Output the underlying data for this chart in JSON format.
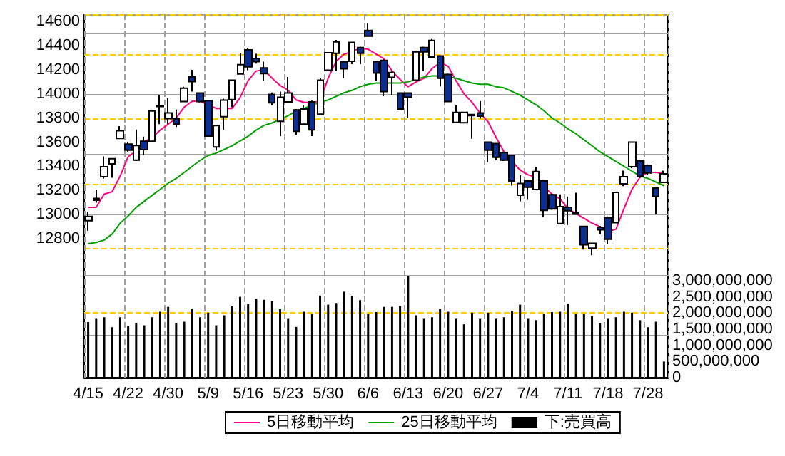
{
  "chart_data": {
    "type": "candlestick",
    "categories": [
      "4/15",
      null,
      null,
      null,
      null,
      "4/22",
      null,
      null,
      null,
      null,
      "4/30",
      null,
      null,
      null,
      null,
      "5/9",
      null,
      null,
      null,
      null,
      "5/16",
      null,
      null,
      null,
      null,
      "5/23",
      null,
      null,
      null,
      null,
      "5/30",
      null,
      null,
      null,
      null,
      "6/6",
      null,
      null,
      null,
      null,
      "6/13",
      null,
      null,
      null,
      null,
      "6/20",
      null,
      null,
      null,
      null,
      "6/27",
      null,
      null,
      null,
      null,
      "7/4",
      null,
      null,
      null,
      null,
      "7/11",
      null,
      null,
      null,
      null,
      "7/18",
      null,
      null,
      null,
      null,
      "7/28",
      null,
      null
    ],
    "ohlc": [
      [
        12950,
        13020,
        12867,
        12985
      ],
      [
        13120,
        13208,
        13099,
        13135
      ],
      [
        13314,
        13483,
        13300,
        13397
      ],
      [
        13420,
        13463,
        13306,
        13463
      ],
      [
        13632,
        13734,
        13628,
        13695
      ],
      [
        13585,
        13600,
        13522,
        13534
      ],
      [
        13451,
        13706,
        13444,
        13573
      ],
      [
        13608,
        13647,
        13491,
        13538
      ],
      [
        13608,
        13867,
        13604,
        13859
      ],
      [
        13895,
        13992,
        13749,
        13900
      ],
      [
        13796,
        13965,
        13749,
        13843
      ],
      [
        13796,
        13871,
        13726,
        13749
      ],
      [
        13937,
        14059,
        13933,
        14047
      ],
      [
        14141,
        14200,
        14020,
        14102
      ],
      [
        14008,
        14012,
        13930,
        13937
      ],
      [
        13945,
        13950,
        13645,
        13651
      ],
      [
        13561,
        13742,
        13530,
        13738
      ],
      [
        13812,
        13961,
        13702,
        13949
      ],
      [
        13953,
        14118,
        13890,
        14114
      ],
      [
        14165,
        14337,
        14160,
        14243
      ],
      [
        14365,
        14380,
        14196,
        14224
      ],
      [
        14294,
        14333,
        14251,
        14267
      ],
      [
        14216,
        14267,
        14110,
        14169
      ],
      [
        13996,
        14012,
        13906,
        13926
      ],
      [
        13773,
        14020,
        13651,
        13973
      ],
      [
        13934,
        14141,
        13930,
        14008
      ],
      [
        13867,
        13875,
        13663,
        13691
      ],
      [
        13749,
        13906,
        13745,
        13875
      ],
      [
        13934,
        13945,
        13651,
        13702
      ],
      [
        13832,
        14130,
        13828,
        14114
      ],
      [
        14196,
        14345,
        14188,
        14341
      ],
      [
        14337,
        14447,
        14188,
        14431
      ],
      [
        14267,
        14275,
        14130,
        14208
      ],
      [
        14271,
        14431,
        14247,
        14427
      ],
      [
        14384,
        14392,
        14247,
        14337
      ],
      [
        14525,
        14588,
        14474,
        14478
      ],
      [
        14267,
        14275,
        14110,
        14173
      ],
      [
        14278,
        14286,
        13981,
        14020
      ],
      [
        14137,
        14188,
        13992,
        14177
      ],
      [
        14008,
        14012,
        13871,
        13875
      ],
      [
        14008,
        14012,
        13804,
        13973
      ],
      [
        14114,
        14357,
        14110,
        14349
      ],
      [
        14384,
        14392,
        14188,
        14349
      ],
      [
        14306,
        14455,
        14302,
        14443
      ],
      [
        14314,
        14318,
        14063,
        14130
      ],
      [
        14161,
        14169,
        13933,
        13937
      ],
      [
        13765,
        13906,
        13761,
        13847
      ],
      [
        13761,
        13851,
        13757,
        13847
      ],
      [
        13830,
        13835,
        13628,
        13820
      ],
      [
        13843,
        13941,
        13796,
        13816
      ],
      [
        13600,
        13604,
        13436,
        13534
      ],
      [
        13589,
        13593,
        13451,
        13475
      ],
      [
        13514,
        13522,
        13444,
        13451
      ],
      [
        13491,
        13498,
        13240,
        13279
      ],
      [
        13161,
        13326,
        13110,
        13259
      ],
      [
        13279,
        13287,
        13122,
        13228
      ],
      [
        13208,
        13397,
        13204,
        13357
      ],
      [
        13279,
        13287,
        12981,
        13036
      ],
      [
        13165,
        13173,
        13040,
        13048
      ],
      [
        12926,
        13169,
        12922,
        13067
      ],
      [
        13060,
        13150,
        12914,
        13032
      ],
      [
        13016,
        13181,
        13004,
        13005
      ],
      [
        12903,
        12907,
        12711,
        12750
      ],
      [
        12722,
        12766,
        12663,
        12762
      ],
      [
        12895,
        12907,
        12836,
        12875
      ],
      [
        12973,
        12985,
        12758,
        12797
      ],
      [
        12934,
        13189,
        12930,
        13185
      ],
      [
        13255,
        13365,
        13236,
        13314
      ],
      [
        13397,
        13604,
        13385,
        13600
      ],
      [
        13444,
        13451,
        13306,
        13318
      ],
      [
        13408,
        13416,
        13326,
        13346
      ],
      [
        13220,
        13224,
        13001,
        13150
      ],
      [
        13267,
        13365,
        13263,
        13338
      ]
    ],
    "colors": [
      "#ffffff",
      "#ffffff",
      "#ffffff",
      "#ffffff",
      "#ffffff",
      "#0c2f8f",
      "#ffffff",
      "#0c2f8f",
      "#ffffff",
      "#ffffff",
      "#ffffff",
      "#0c2f8f",
      "#ffffff",
      "#0c2f8f",
      "#0c2f8f",
      "#0c2f8f",
      "#ffffff",
      "#ffffff",
      "#ffffff",
      "#ffffff",
      "#0c2f8f",
      "#0c2f8f",
      "#0c2f8f",
      "#0c2f8f",
      "#ffffff",
      "#ffffff",
      "#0c2f8f",
      "#ffffff",
      "#0c2f8f",
      "#ffffff",
      "#ffffff",
      "#ffffff",
      "#0c2f8f",
      "#ffffff",
      "#0c2f8f",
      "#0c2f8f",
      "#0c2f8f",
      "#0c2f8f",
      "#ffffff",
      "#0c2f8f",
      "#0c2f8f",
      "#ffffff",
      "#0c2f8f",
      "#ffffff",
      "#0c2f8f",
      "#0c2f8f",
      "#ffffff",
      "#ffffff",
      "#0c2f8f",
      "#0c2f8f",
      "#0c2f8f",
      "#0c2f8f",
      "#0c2f8f",
      "#0c2f8f",
      "#ffffff",
      "#0c2f8f",
      "#ffffff",
      "#0c2f8f",
      "#0c2f8f",
      "#ffffff",
      "#0c2f8f",
      "#0c2f8f",
      "#0c2f8f",
      "#ffffff",
      "#0c2f8f",
      "#0c2f8f",
      "#ffffff",
      "#ffffff",
      "#ffffff",
      "#0c2f8f",
      "#0c2f8f",
      "#0c2f8f",
      "#ffffff"
    ],
    "series": [
      {
        "name": "5日移動平均",
        "type": "line",
        "color": "#ff0080",
        "values": [
          13060,
          13060,
          13170,
          13190,
          13320,
          13480,
          13530,
          13600,
          13640,
          13700,
          13750,
          13800,
          13890,
          13940,
          13940,
          13910,
          13880,
          13880,
          13880,
          13970,
          14110,
          14190,
          14200,
          14130,
          14070,
          14030,
          13950,
          13930,
          13930,
          13940,
          14130,
          14270,
          14330,
          14350,
          14380,
          14370,
          14330,
          14290,
          14190,
          14120,
          14060,
          14100,
          14130,
          14210,
          14260,
          14230,
          14110,
          14000,
          13930,
          13840,
          13770,
          13640,
          13520,
          13440,
          13370,
          13330,
          13310,
          13230,
          13170,
          13130,
          13050,
          13010,
          12970,
          12930,
          12900,
          12860,
          12880,
          13050,
          13210,
          13310,
          13350,
          13350,
          13340
        ]
      },
      {
        "name": "25日移動平均",
        "type": "line",
        "color": "#00a000",
        "values": [
          12760,
          12770,
          12790,
          12840,
          12930,
          12990,
          13060,
          13110,
          13160,
          13210,
          13260,
          13300,
          13350,
          13400,
          13450,
          13490,
          13510,
          13540,
          13570,
          13610,
          13650,
          13700,
          13740,
          13760,
          13790,
          13820,
          13860,
          13880,
          13910,
          13930,
          13950,
          13980,
          14010,
          14030,
          14060,
          14080,
          14090,
          14090,
          14090,
          14090,
          14100,
          14120,
          14140,
          14150,
          14150,
          14140,
          14130,
          14110,
          14090,
          14080,
          14080,
          14060,
          14050,
          14020,
          13990,
          13950,
          13910,
          13860,
          13800,
          13760,
          13710,
          13670,
          13620,
          13570,
          13520,
          13480,
          13440,
          13400,
          13360,
          13320,
          13300,
          13270,
          13240
        ]
      },
      {
        "name": "下:売買高",
        "type": "bar",
        "axis": "y2",
        "color": "#000000",
        "values": [
          1720000000,
          1820000000,
          1870000000,
          1560000000,
          1870000000,
          1600000000,
          1690000000,
          1620000000,
          1870000000,
          2040000000,
          2190000000,
          1690000000,
          1730000000,
          2130000000,
          1870000000,
          2010000000,
          1620000000,
          1930000000,
          2230000000,
          2500000000,
          2280000000,
          2440000000,
          2410000000,
          2370000000,
          2120000000,
          1820000000,
          1570000000,
          2040000000,
          1970000000,
          2540000000,
          2260000000,
          2310000000,
          2660000000,
          2530000000,
          2400000000,
          1970000000,
          2030000000,
          2190000000,
          2190000000,
          2220000000,
          3150000000,
          1930000000,
          1820000000,
          1870000000,
          2130000000,
          2040000000,
          1820000000,
          1650000000,
          2010000000,
          1820000000,
          2010000000,
          1820000000,
          1870000000,
          2060000000,
          2260000000,
          1820000000,
          1780000000,
          1970000000,
          2030000000,
          2040000000,
          2290000000,
          1970000000,
          1970000000,
          1910000000,
          1680000000,
          1820000000,
          1870000000,
          2040000000,
          2010000000,
          1780000000,
          1560000000,
          1730000000,
          500000000
        ]
      }
    ],
    "ylim": [
      11650,
      14660
    ],
    "yticks": [
      12800,
      13000,
      13200,
      13400,
      13600,
      13800,
      14000,
      14200,
      14400,
      14600
    ],
    "y2lim": [
      0,
      11250000000
    ],
    "y2ticks": [
      0,
      {
        "value": 500000000,
        "label": "500,000,000"
      },
      {
        "value": 1000000000,
        "label": "1,000,000,000"
      },
      {
        "value": 1500000000,
        "label": "1,500,000,000"
      },
      {
        "value": 2000000000,
        "label": "2,000,000,000"
      },
      {
        "value": 2500000000,
        "label": "2,500,000,000"
      },
      {
        "value": 3000000000,
        "label": "3,000,000,000"
      }
    ],
    "grid": true,
    "legend": "bottom",
    "marker": "none",
    "line_style": "solid"
  }
}
